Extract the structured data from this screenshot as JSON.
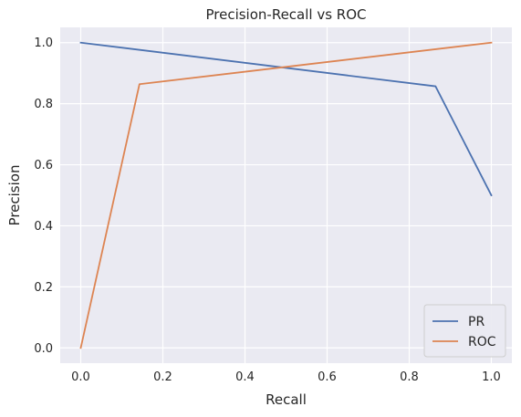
{
  "chart_data": {
    "type": "line",
    "title": "Precision-Recall vs ROC",
    "xlabel": "Recall",
    "ylabel": "Precision",
    "xlim": [
      -0.05,
      1.05
    ],
    "ylim": [
      -0.05,
      1.05
    ],
    "xticks": [
      0.0,
      0.2,
      0.4,
      0.6,
      0.8,
      1.0
    ],
    "yticks": [
      0.0,
      0.2,
      0.4,
      0.6,
      0.8,
      1.0
    ],
    "xtick_labels": [
      "0.0",
      "0.2",
      "0.4",
      "0.6",
      "0.8",
      "1.0"
    ],
    "ytick_labels": [
      "0.0",
      "0.2",
      "0.4",
      "0.6",
      "0.8",
      "1.0"
    ],
    "grid": true,
    "legend_position": "lower-right",
    "series": [
      {
        "name": "PR",
        "color": "#4c72b0",
        "x": [
          0.0,
          0.864,
          1.0
        ],
        "y": [
          1.0,
          0.857,
          0.5
        ]
      },
      {
        "name": "ROC",
        "color": "#dd8452",
        "x": [
          0.0,
          0.143,
          1.0
        ],
        "y": [
          0.0,
          0.864,
          1.0
        ]
      }
    ]
  }
}
